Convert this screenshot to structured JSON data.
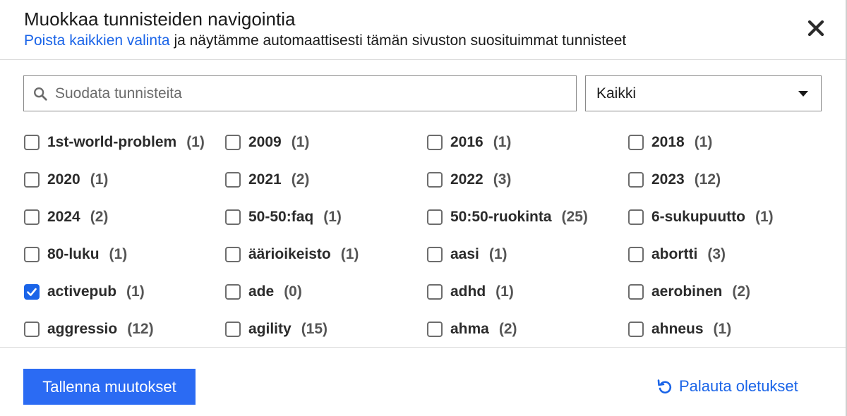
{
  "header": {
    "title": "Muokkaa tunnisteiden navigointia",
    "subtitle_link": "Poista kaikkien valinta",
    "subtitle_text": " ja näytämme automaattisesti tämän sivuston suosituimmat tunnisteet",
    "close_icon": "close-icon"
  },
  "filter": {
    "search_placeholder": "Suodata tunnisteita",
    "search_value": "",
    "select_value": "Kaikki"
  },
  "colors": {
    "accent": "#1a64e8",
    "button": "#2b6bf3"
  },
  "tags": [
    [
      {
        "name": "1st-world-problem",
        "count": "(1)",
        "checked": false
      },
      {
        "name": "2009",
        "count": "(1)",
        "checked": false
      },
      {
        "name": "2016",
        "count": "(1)",
        "checked": false
      },
      {
        "name": "2018",
        "count": "(1)",
        "checked": false
      }
    ],
    [
      {
        "name": "2020",
        "count": "(1)",
        "checked": false
      },
      {
        "name": "2021",
        "count": "(2)",
        "checked": false
      },
      {
        "name": "2022",
        "count": "(3)",
        "checked": false
      },
      {
        "name": "2023",
        "count": "(12)",
        "checked": false
      }
    ],
    [
      {
        "name": "2024",
        "count": "(2)",
        "checked": false
      },
      {
        "name": "50-50:faq",
        "count": "(1)",
        "checked": false
      },
      {
        "name": "50:50-ruokinta",
        "count": "(25)",
        "checked": false
      },
      {
        "name": "6-sukupuutto",
        "count": "(1)",
        "checked": false
      }
    ],
    [
      {
        "name": "80-luku",
        "count": "(1)",
        "checked": false
      },
      {
        "name": "äärioikeisto",
        "count": "(1)",
        "checked": false
      },
      {
        "name": "aasi",
        "count": "(1)",
        "checked": false
      },
      {
        "name": "abortti",
        "count": "(3)",
        "checked": false
      }
    ],
    [
      {
        "name": "activepub",
        "count": "(1)",
        "checked": true
      },
      {
        "name": "ade",
        "count": "(0)",
        "checked": false
      },
      {
        "name": "adhd",
        "count": "(1)",
        "checked": false
      },
      {
        "name": "aerobinen",
        "count": "(2)",
        "checked": false
      }
    ],
    [
      {
        "name": "aggressio",
        "count": "(12)",
        "checked": false
      },
      {
        "name": "agility",
        "count": "(15)",
        "checked": false
      },
      {
        "name": "ahma",
        "count": "(2)",
        "checked": false
      },
      {
        "name": "ahneus",
        "count": "(1)",
        "checked": false
      }
    ]
  ],
  "footer": {
    "save_label": "Tallenna muutokset",
    "reset_label": "Palauta oletukset"
  }
}
